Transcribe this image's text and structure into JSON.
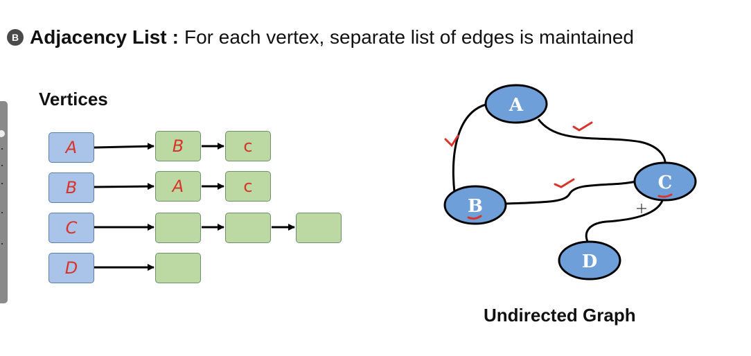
{
  "heading": {
    "badge": "B",
    "title": "Adjacency List",
    "separator": ":",
    "description": "For each vertex, separate list of edges is maintained"
  },
  "vertices_label": "Vertices",
  "adjacency_list": [
    {
      "vertex": "A",
      "neighbors": [
        "B",
        "C"
      ]
    },
    {
      "vertex": "B",
      "neighbors": [
        "A",
        "C"
      ]
    },
    {
      "vertex": "C",
      "neighbors": [
        "",
        "",
        ""
      ]
    },
    {
      "vertex": "D",
      "neighbors": [
        ""
      ]
    }
  ],
  "graph": {
    "caption": "Undirected Graph",
    "nodes": [
      "A",
      "B",
      "C",
      "D"
    ],
    "edges": [
      [
        "A",
        "B"
      ],
      [
        "A",
        "C"
      ],
      [
        "B",
        "C"
      ],
      [
        "C",
        "D"
      ]
    ]
  },
  "colors": {
    "vertex_fill": "#a9c4e8",
    "edge_fill": "#bcd8a3",
    "graph_node_fill": "#6f9fd8",
    "annotation_red": "#d9342b"
  }
}
